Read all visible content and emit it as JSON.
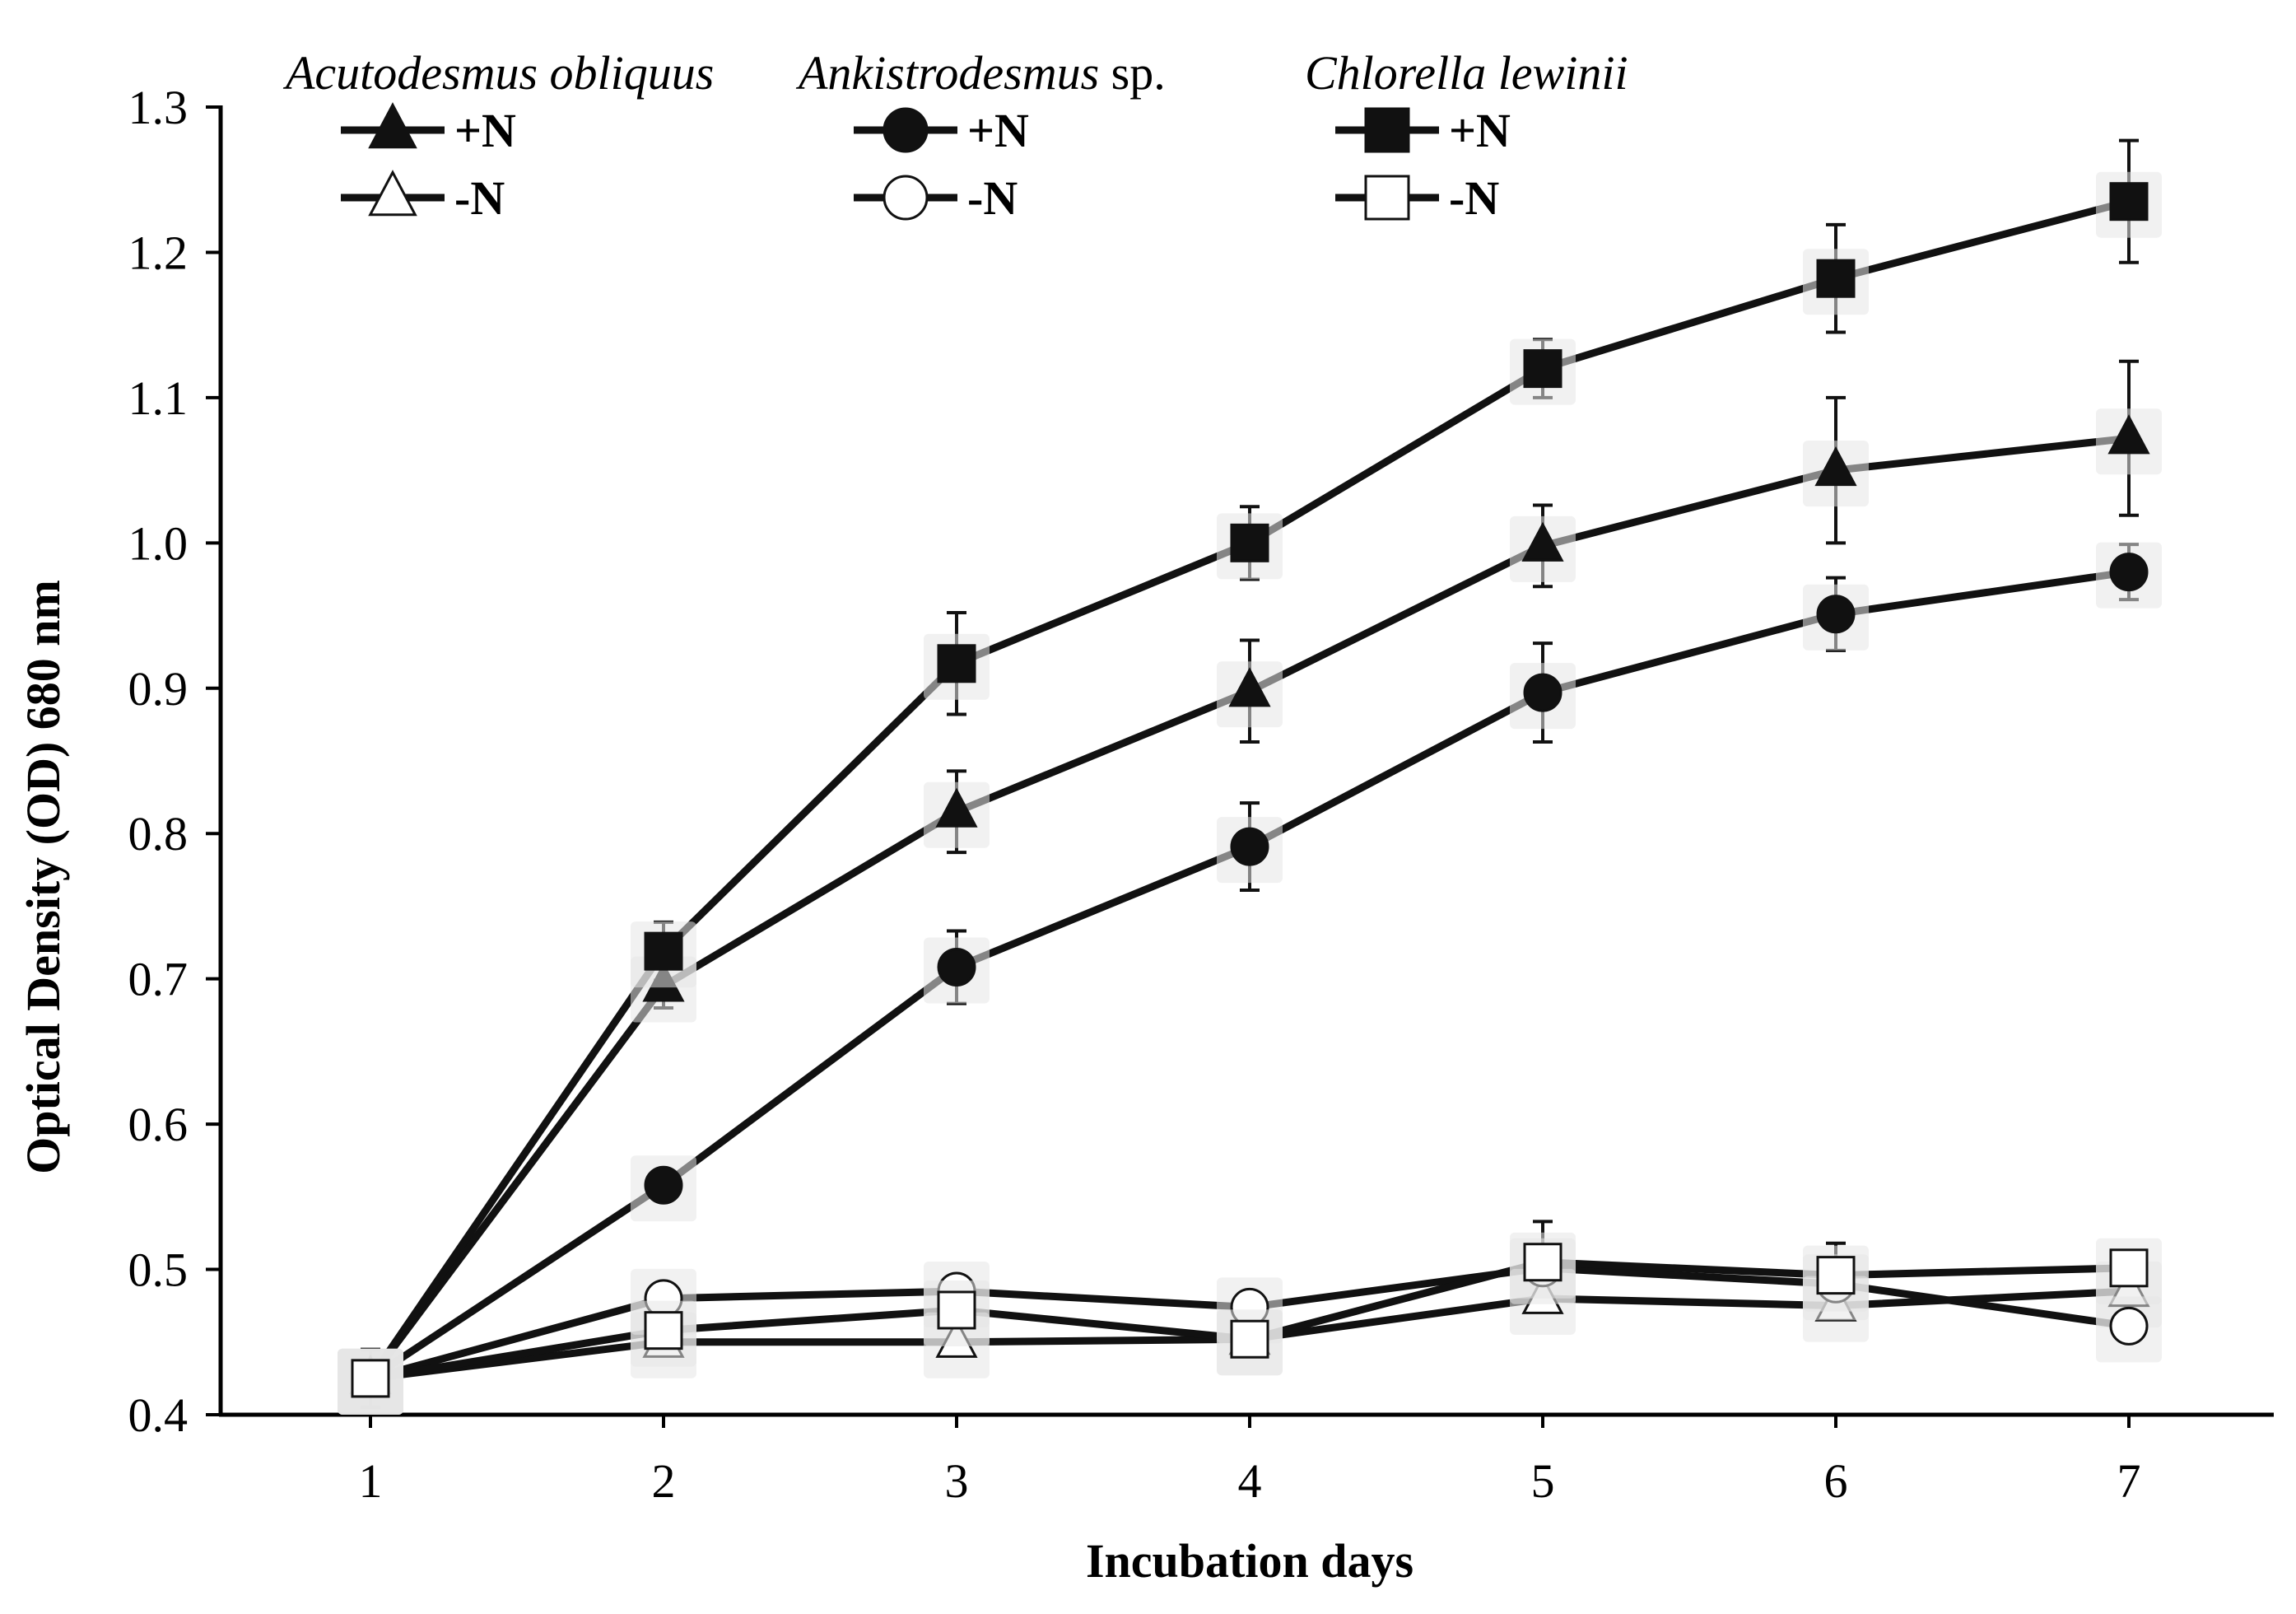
{
  "chart_data": {
    "type": "line",
    "title": "",
    "xlabel": "Incubation days",
    "ylabel": "Optical Density (OD) 680 nm",
    "x": [
      1,
      2,
      3,
      4,
      5,
      6,
      7
    ],
    "x_tick_labels": [
      "1",
      "2",
      "3",
      "4",
      "5",
      "6",
      "7"
    ],
    "ylim": [
      0.4,
      1.3
    ],
    "y_ticks": [
      0.4,
      0.5,
      0.6,
      0.7,
      0.8,
      0.9,
      1.0,
      1.1,
      1.2,
      1.3
    ],
    "y_tick_labels": [
      "0.4",
      "0.5",
      "0.6",
      "0.7",
      "0.8",
      "0.9",
      "1.0",
      "1.1",
      "1.2",
      "1.3"
    ],
    "grid": false,
    "legend_position": "top",
    "legend_groups": [
      {
        "species": "Acutodesmus obliquus",
        "suffix": "",
        "marker": "triangle"
      },
      {
        "species": "Ankistrodesmus",
        "suffix": " sp.",
        "marker": "circle"
      },
      {
        "species": "Chlorella lewinii",
        "suffix": "",
        "marker": "square"
      }
    ],
    "legend_labels": {
      "plus": "+N",
      "minus": "-N"
    },
    "series": [
      {
        "name": "Acutodesmus obliquus +N",
        "marker": "triangle",
        "filled": true,
        "values": [
          0.425,
          0.695,
          0.815,
          0.898,
          0.998,
          1.05,
          1.072
        ],
        "errors": [
          0.02,
          0.015,
          0.028,
          0.035,
          0.028,
          0.05,
          0.053
        ]
      },
      {
        "name": "Acutodesmus obliquus -N",
        "marker": "triangle",
        "filled": false,
        "values": [
          0.425,
          0.45,
          0.45,
          0.452,
          0.48,
          0.475,
          0.485
        ],
        "errors": [
          0,
          0,
          0,
          0,
          0,
          0,
          0
        ]
      },
      {
        "name": "Ankistrodesmus sp. +N",
        "marker": "circle",
        "filled": true,
        "values": [
          0.425,
          0.558,
          0.708,
          0.791,
          0.897,
          0.951,
          0.98
        ],
        "errors": [
          0,
          0,
          0.025,
          0.03,
          0.034,
          0.025,
          0.019
        ]
      },
      {
        "name": "Ankistrodesmus sp. -N",
        "marker": "circle",
        "filled": false,
        "values": [
          0.425,
          0.48,
          0.485,
          0.474,
          0.501,
          0.49,
          0.461
        ],
        "errors": [
          0,
          0,
          0,
          0,
          0,
          0,
          0
        ]
      },
      {
        "name": "Chlorella lewinii +N",
        "marker": "square",
        "filled": true,
        "values": [
          0.425,
          0.719,
          0.917,
          1.0,
          1.12,
          1.182,
          1.235
        ],
        "errors": [
          0,
          0.02,
          0.035,
          0.025,
          0.02,
          0.037,
          0.042
        ]
      },
      {
        "name": "Chlorella lewinii -N",
        "marker": "square",
        "filled": false,
        "values": [
          0.425,
          0.458,
          0.472,
          0.452,
          0.505,
          0.496,
          0.501
        ],
        "errors": [
          0,
          0,
          0,
          0,
          0.028,
          0.022,
          0
        ]
      }
    ]
  }
}
